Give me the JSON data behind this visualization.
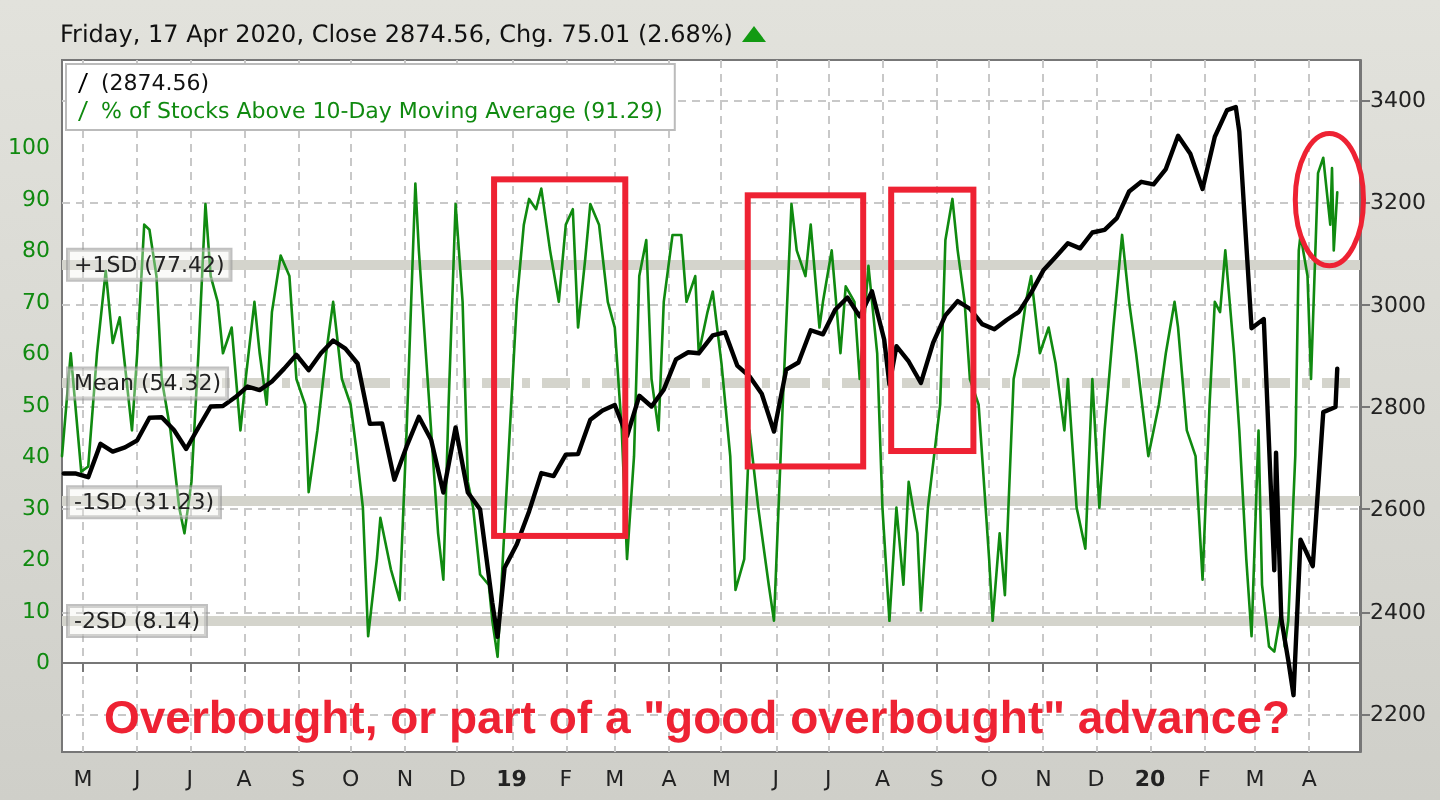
{
  "chart_data": {
    "type": "line",
    "subtitle": "Friday, 17 Apr 2020, Close 2874.56, Chg. 75.01 (2.68%)",
    "annotations": [
      "Overbought, or part of a \"good overbought\" advance?"
    ],
    "xlim": [
      "2018-04-19",
      "2020-04-30"
    ],
    "xticks": [
      {
        "value": "2018-05-01",
        "label": "M"
      },
      {
        "value": "2018-06-01",
        "label": "J"
      },
      {
        "value": "2018-07-01",
        "label": "J"
      },
      {
        "value": "2018-08-01",
        "label": "A"
      },
      {
        "value": "2018-09-01",
        "label": "S"
      },
      {
        "value": "2018-10-01",
        "label": "O"
      },
      {
        "value": "2018-11-01",
        "label": "N"
      },
      {
        "value": "2018-12-01",
        "label": "D"
      },
      {
        "value": "2019-01-01",
        "label": "19"
      },
      {
        "value": "2019-02-01",
        "label": "F"
      },
      {
        "value": "2019-03-01",
        "label": "M"
      },
      {
        "value": "2019-04-01",
        "label": "A"
      },
      {
        "value": "2019-05-01",
        "label": "M"
      },
      {
        "value": "2019-06-01",
        "label": "J"
      },
      {
        "value": "2019-07-01",
        "label": "J"
      },
      {
        "value": "2019-08-01",
        "label": "A"
      },
      {
        "value": "2019-09-01",
        "label": "S"
      },
      {
        "value": "2019-10-01",
        "label": "O"
      },
      {
        "value": "2019-11-01",
        "label": "N"
      },
      {
        "value": "2019-12-01",
        "label": "D"
      },
      {
        "value": "2020-01-01",
        "label": "20"
      },
      {
        "value": "2020-02-01",
        "label": "F"
      },
      {
        "value": "2020-03-01",
        "label": "M"
      },
      {
        "value": "2020-04-01",
        "label": "A"
      }
    ],
    "ylim": [
      -17.5,
      117
    ],
    "yticks": [
      0,
      10,
      20,
      30,
      40,
      50,
      60,
      70,
      80,
      90,
      100
    ],
    "y2lim": [
      2126,
      3478
    ],
    "y2ticks": [
      2200,
      2400,
      2600,
      2800,
      3000,
      3200,
      3400
    ],
    "grid": true,
    "legend": "top left",
    "marker": "none",
    "line_style": "solid",
    "ref_lines": [
      {
        "axis": "y",
        "value": 77.42,
        "label": "+1SD (77.42)",
        "color": "#d4d4cc",
        "line_style": "solid"
      },
      {
        "axis": "y",
        "value": 54.32,
        "label": "Mean (54.32)",
        "color": "#d4d4cc",
        "line_style": "dashed"
      },
      {
        "axis": "y",
        "value": 31.23,
        "label": "-1SD (31.23)",
        "color": "#d4d4cc",
        "line_style": "solid"
      },
      {
        "axis": "y",
        "value": 8.14,
        "label": "-2SD (8.14)",
        "color": "#d4d4cc",
        "line_style": "solid"
      }
    ],
    "series": [
      {
        "name": "(2874.56)",
        "color": "#000000",
        "axis": "y2",
        "x": [
          "2018-04-20",
          "2018-04-27",
          "2018-05-04",
          "2018-05-11",
          "2018-05-18",
          "2018-05-25",
          "2018-06-01",
          "2018-06-08",
          "2018-06-15",
          "2018-06-22",
          "2018-06-29",
          "2018-07-06",
          "2018-07-13",
          "2018-07-20",
          "2018-07-27",
          "2018-08-03",
          "2018-08-10",
          "2018-08-17",
          "2018-08-24",
          "2018-08-31",
          "2018-09-07",
          "2018-09-14",
          "2018-09-21",
          "2018-09-28",
          "2018-10-05",
          "2018-10-12",
          "2018-10-19",
          "2018-10-26",
          "2018-11-02",
          "2018-11-09",
          "2018-11-16",
          "2018-11-23",
          "2018-11-30",
          "2018-12-07",
          "2018-12-14",
          "2018-12-21",
          "2018-12-24",
          "2018-12-28",
          "2019-01-04",
          "2019-01-11",
          "2019-01-18",
          "2019-01-25",
          "2019-02-01",
          "2019-02-08",
          "2019-02-15",
          "2019-02-22",
          "2019-03-01",
          "2019-03-08",
          "2019-03-15",
          "2019-03-22",
          "2019-03-29",
          "2019-04-05",
          "2019-04-12",
          "2019-04-18",
          "2019-04-26",
          "2019-05-03",
          "2019-05-10",
          "2019-05-17",
          "2019-05-24",
          "2019-05-31",
          "2019-06-07",
          "2019-06-14",
          "2019-06-21",
          "2019-06-28",
          "2019-07-05",
          "2019-07-12",
          "2019-07-19",
          "2019-07-26",
          "2019-08-02",
          "2019-08-05",
          "2019-08-09",
          "2019-08-16",
          "2019-08-23",
          "2019-08-30",
          "2019-09-06",
          "2019-09-13",
          "2019-09-20",
          "2019-09-27",
          "2019-10-04",
          "2019-10-11",
          "2019-10-18",
          "2019-10-25",
          "2019-11-01",
          "2019-11-08",
          "2019-11-15",
          "2019-11-22",
          "2019-11-29",
          "2019-12-06",
          "2019-12-13",
          "2019-12-20",
          "2019-12-27",
          "2020-01-03",
          "2020-01-10",
          "2020-01-17",
          "2020-01-24",
          "2020-01-31",
          "2020-02-07",
          "2020-02-14",
          "2020-02-19",
          "2020-02-21",
          "2020-02-28",
          "2020-03-06",
          "2020-03-12",
          "2020-03-13",
          "2020-03-16",
          "2020-03-20",
          "2020-03-23",
          "2020-03-27",
          "2020-04-03",
          "2020-04-09",
          "2020-04-16",
          "2020-04-17"
        ],
        "values": [
          2670,
          2670,
          2663,
          2728,
          2713,
          2721,
          2735,
          2779,
          2780,
          2755,
          2718,
          2760,
          2801,
          2802,
          2819,
          2840,
          2833,
          2850,
          2875,
          2902,
          2872,
          2905,
          2930,
          2914,
          2885,
          2767,
          2768,
          2658,
          2723,
          2781,
          2736,
          2633,
          2760,
          2633,
          2600,
          2417,
          2351,
          2486,
          2532,
          2596,
          2671,
          2665,
          2707,
          2708,
          2775,
          2793,
          2804,
          2743,
          2822,
          2801,
          2834,
          2893,
          2907,
          2905,
          2940,
          2946,
          2881,
          2860,
          2826,
          2752,
          2873,
          2887,
          2950,
          2942,
          2990,
          3014,
          2977,
          3026,
          2932,
          2844,
          2919,
          2889,
          2847,
          2926,
          2979,
          3007,
          2992,
          2962,
          2952,
          2970,
          2986,
          3023,
          3067,
          3093,
          3120,
          3110,
          3141,
          3146,
          3169,
          3221,
          3240,
          3235,
          3265,
          3330,
          3295,
          3226,
          3328,
          3380,
          3386,
          3338,
          2954,
          2972,
          2481,
          2711,
          2386,
          2305,
          2237,
          2541,
          2489,
          2790,
          2800,
          2875
        ]
      },
      {
        "name": "% of Stocks Above 10-Day Moving Average (91.29)",
        "color": "#108a10",
        "x": [
          "2018-04-19",
          "2018-04-24",
          "2018-04-30",
          "2018-05-04",
          "2018-05-09",
          "2018-05-14",
          "2018-05-18",
          "2018-05-22",
          "2018-05-29",
          "2018-06-01",
          "2018-06-05",
          "2018-06-08",
          "2018-06-12",
          "2018-06-15",
          "2018-06-20",
          "2018-06-25",
          "2018-06-28",
          "2018-07-02",
          "2018-07-06",
          "2018-07-10",
          "2018-07-13",
          "2018-07-17",
          "2018-07-20",
          "2018-07-25",
          "2018-07-30",
          "2018-08-02",
          "2018-08-07",
          "2018-08-10",
          "2018-08-14",
          "2018-08-17",
          "2018-08-22",
          "2018-08-27",
          "2018-08-31",
          "2018-09-05",
          "2018-09-07",
          "2018-09-12",
          "2018-09-17",
          "2018-09-21",
          "2018-09-26",
          "2018-10-01",
          "2018-10-04",
          "2018-10-08",
          "2018-10-11",
          "2018-10-16",
          "2018-10-18",
          "2018-10-24",
          "2018-10-29",
          "2018-11-02",
          "2018-11-07",
          "2018-11-09",
          "2018-11-14",
          "2018-11-16",
          "2018-11-20",
          "2018-11-23",
          "2018-11-26",
          "2018-11-30",
          "2018-12-04",
          "2018-12-07",
          "2018-12-10",
          "2018-12-14",
          "2018-12-19",
          "2018-12-21",
          "2018-12-24",
          "2018-12-27",
          "2018-12-31",
          "2019-01-04",
          "2019-01-08",
          "2019-01-11",
          "2019-01-15",
          "2019-01-18",
          "2019-01-23",
          "2019-01-28",
          "2019-02-01",
          "2019-02-05",
          "2019-02-08",
          "2019-02-12",
          "2019-02-15",
          "2019-02-20",
          "2019-02-25",
          "2019-03-01",
          "2019-03-05",
          "2019-03-08",
          "2019-03-12",
          "2019-03-15",
          "2019-03-19",
          "2019-03-22",
          "2019-03-26",
          "2019-03-29",
          "2019-04-03",
          "2019-04-08",
          "2019-04-11",
          "2019-04-16",
          "2019-04-18",
          "2019-04-23",
          "2019-04-26",
          "2019-05-01",
          "2019-05-06",
          "2019-05-09",
          "2019-05-14",
          "2019-05-17",
          "2019-05-22",
          "2019-05-28",
          "2019-05-31",
          "2019-06-05",
          "2019-06-10",
          "2019-06-13",
          "2019-06-18",
          "2019-06-21",
          "2019-06-26",
          "2019-06-28",
          "2019-07-03",
          "2019-07-08",
          "2019-07-11",
          "2019-07-16",
          "2019-07-19",
          "2019-07-24",
          "2019-07-29",
          "2019-08-01",
          "2019-08-05",
          "2019-08-09",
          "2019-08-13",
          "2019-08-16",
          "2019-08-21",
          "2019-08-23",
          "2019-08-27",
          "2019-09-03",
          "2019-09-06",
          "2019-09-10",
          "2019-09-13",
          "2019-09-17",
          "2019-09-20",
          "2019-09-25",
          "2019-10-01",
          "2019-10-03",
          "2019-10-07",
          "2019-10-10",
          "2019-10-15",
          "2019-10-18",
          "2019-10-22",
          "2019-10-25",
          "2019-10-30",
          "2019-11-04",
          "2019-11-08",
          "2019-11-13",
          "2019-11-15",
          "2019-11-20",
          "2019-11-25",
          "2019-11-29",
          "2019-12-03",
          "2019-12-06",
          "2019-12-11",
          "2019-12-16",
          "2019-12-20",
          "2019-12-24",
          "2019-12-31",
          "2020-01-06",
          "2020-01-10",
          "2020-01-15",
          "2020-01-17",
          "2020-01-22",
          "2020-01-27",
          "2020-01-31",
          "2020-02-04",
          "2020-02-07",
          "2020-02-10",
          "2020-02-13",
          "2020-02-18",
          "2020-02-21",
          "2020-02-25",
          "2020-02-28",
          "2020-03-03",
          "2020-03-05",
          "2020-03-09",
          "2020-03-12",
          "2020-03-16",
          "2020-03-18",
          "2020-03-20",
          "2020-03-24",
          "2020-03-26",
          "2020-03-27",
          "2020-03-31",
          "2020-04-02",
          "2020-04-06",
          "2020-04-09",
          "2020-04-13",
          "2020-04-14",
          "2020-04-15",
          "2020-04-17"
        ],
        "values": [
          40,
          60,
          37,
          38,
          60,
          76,
          62,
          67,
          45,
          60,
          85,
          84,
          75,
          55,
          45,
          30,
          25,
          35,
          60,
          89,
          75,
          70,
          60,
          65,
          45,
          55,
          70,
          60,
          50,
          68,
          79,
          75,
          55,
          50,
          33,
          45,
          60,
          70,
          55,
          50,
          42,
          30,
          5,
          20,
          28,
          18,
          12,
          45,
          93,
          80,
          55,
          45,
          25,
          16,
          50,
          89,
          70,
          35,
          30,
          17,
          15,
          8,
          1,
          20,
          45,
          70,
          85,
          90,
          88,
          92,
          80,
          70,
          85,
          88,
          65,
          78,
          89,
          85,
          70,
          65,
          45,
          20,
          40,
          75,
          82,
          55,
          45,
          70,
          83,
          83,
          70,
          75,
          60,
          68,
          72,
          58,
          40,
          14,
          20,
          45,
          30,
          15,
          8,
          50,
          89,
          80,
          75,
          85,
          65,
          70,
          80,
          60,
          73,
          70,
          55,
          77,
          60,
          30,
          8,
          30,
          15,
          35,
          25,
          10,
          30,
          50,
          82,
          90,
          80,
          70,
          55,
          50,
          20,
          8,
          25,
          13,
          55,
          60,
          70,
          75,
          60,
          65,
          58,
          45,
          55,
          30,
          22,
          55,
          30,
          45,
          65,
          83,
          70,
          60,
          40,
          50,
          60,
          70,
          65,
          45,
          40,
          16,
          50,
          70,
          68,
          80,
          60,
          45,
          20,
          5,
          45,
          15,
          3,
          2,
          10,
          3,
          8,
          40,
          80,
          83,
          75,
          55,
          95,
          98,
          85,
          96,
          80,
          91.29
        ]
      }
    ]
  }
}
